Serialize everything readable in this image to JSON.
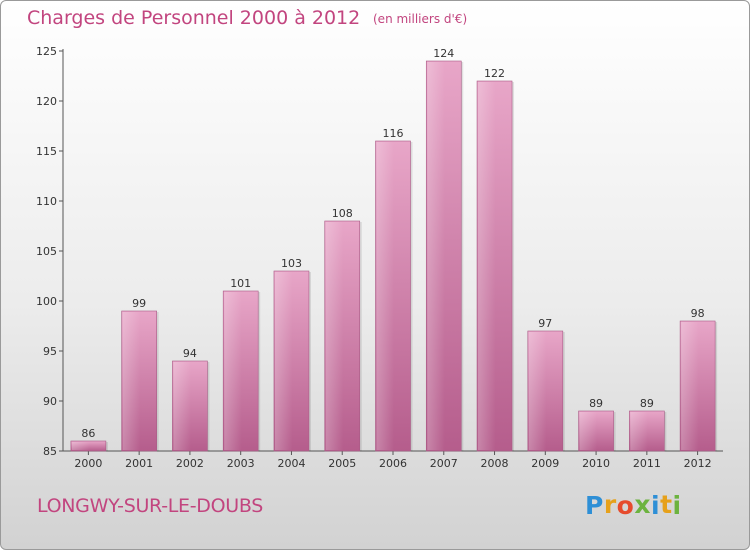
{
  "header": {
    "title": "Charges de Personnel 2000 à 2012",
    "subtitle": "(en milliers d'€)"
  },
  "footer": {
    "place": "LONGWY-SUR-LE-DOUBS",
    "logo_letters": [
      "P",
      "r",
      "o",
      "x",
      "i",
      "t",
      "i"
    ],
    "logo_colors": [
      "#2e8fd6",
      "#e6a11b",
      "#e64b2d",
      "#6cb33f",
      "#2e8fd6",
      "#e6a11b",
      "#6cb33f"
    ]
  },
  "chart_data": {
    "type": "bar",
    "title": "Charges de Personnel 2000 à 2012",
    "subtitle": "(en milliers d'€)",
    "categories": [
      "2000",
      "2001",
      "2002",
      "2003",
      "2004",
      "2005",
      "2006",
      "2007",
      "2008",
      "2009",
      "2010",
      "2011",
      "2012"
    ],
    "values": [
      86,
      99,
      94,
      101,
      103,
      108,
      116,
      124,
      122,
      97,
      89,
      89,
      98
    ],
    "data_labels": [
      "86",
      "99",
      "94",
      "101",
      "103",
      "108",
      "116",
      "124",
      "122",
      "97",
      "89",
      "89",
      "98"
    ],
    "xlabel": "",
    "ylabel": "",
    "ylim": [
      85,
      125
    ],
    "yticks": [
      85,
      90,
      95,
      100,
      105,
      110,
      115,
      120,
      125
    ],
    "grid": false,
    "bar_color": "#d98ab2"
  }
}
